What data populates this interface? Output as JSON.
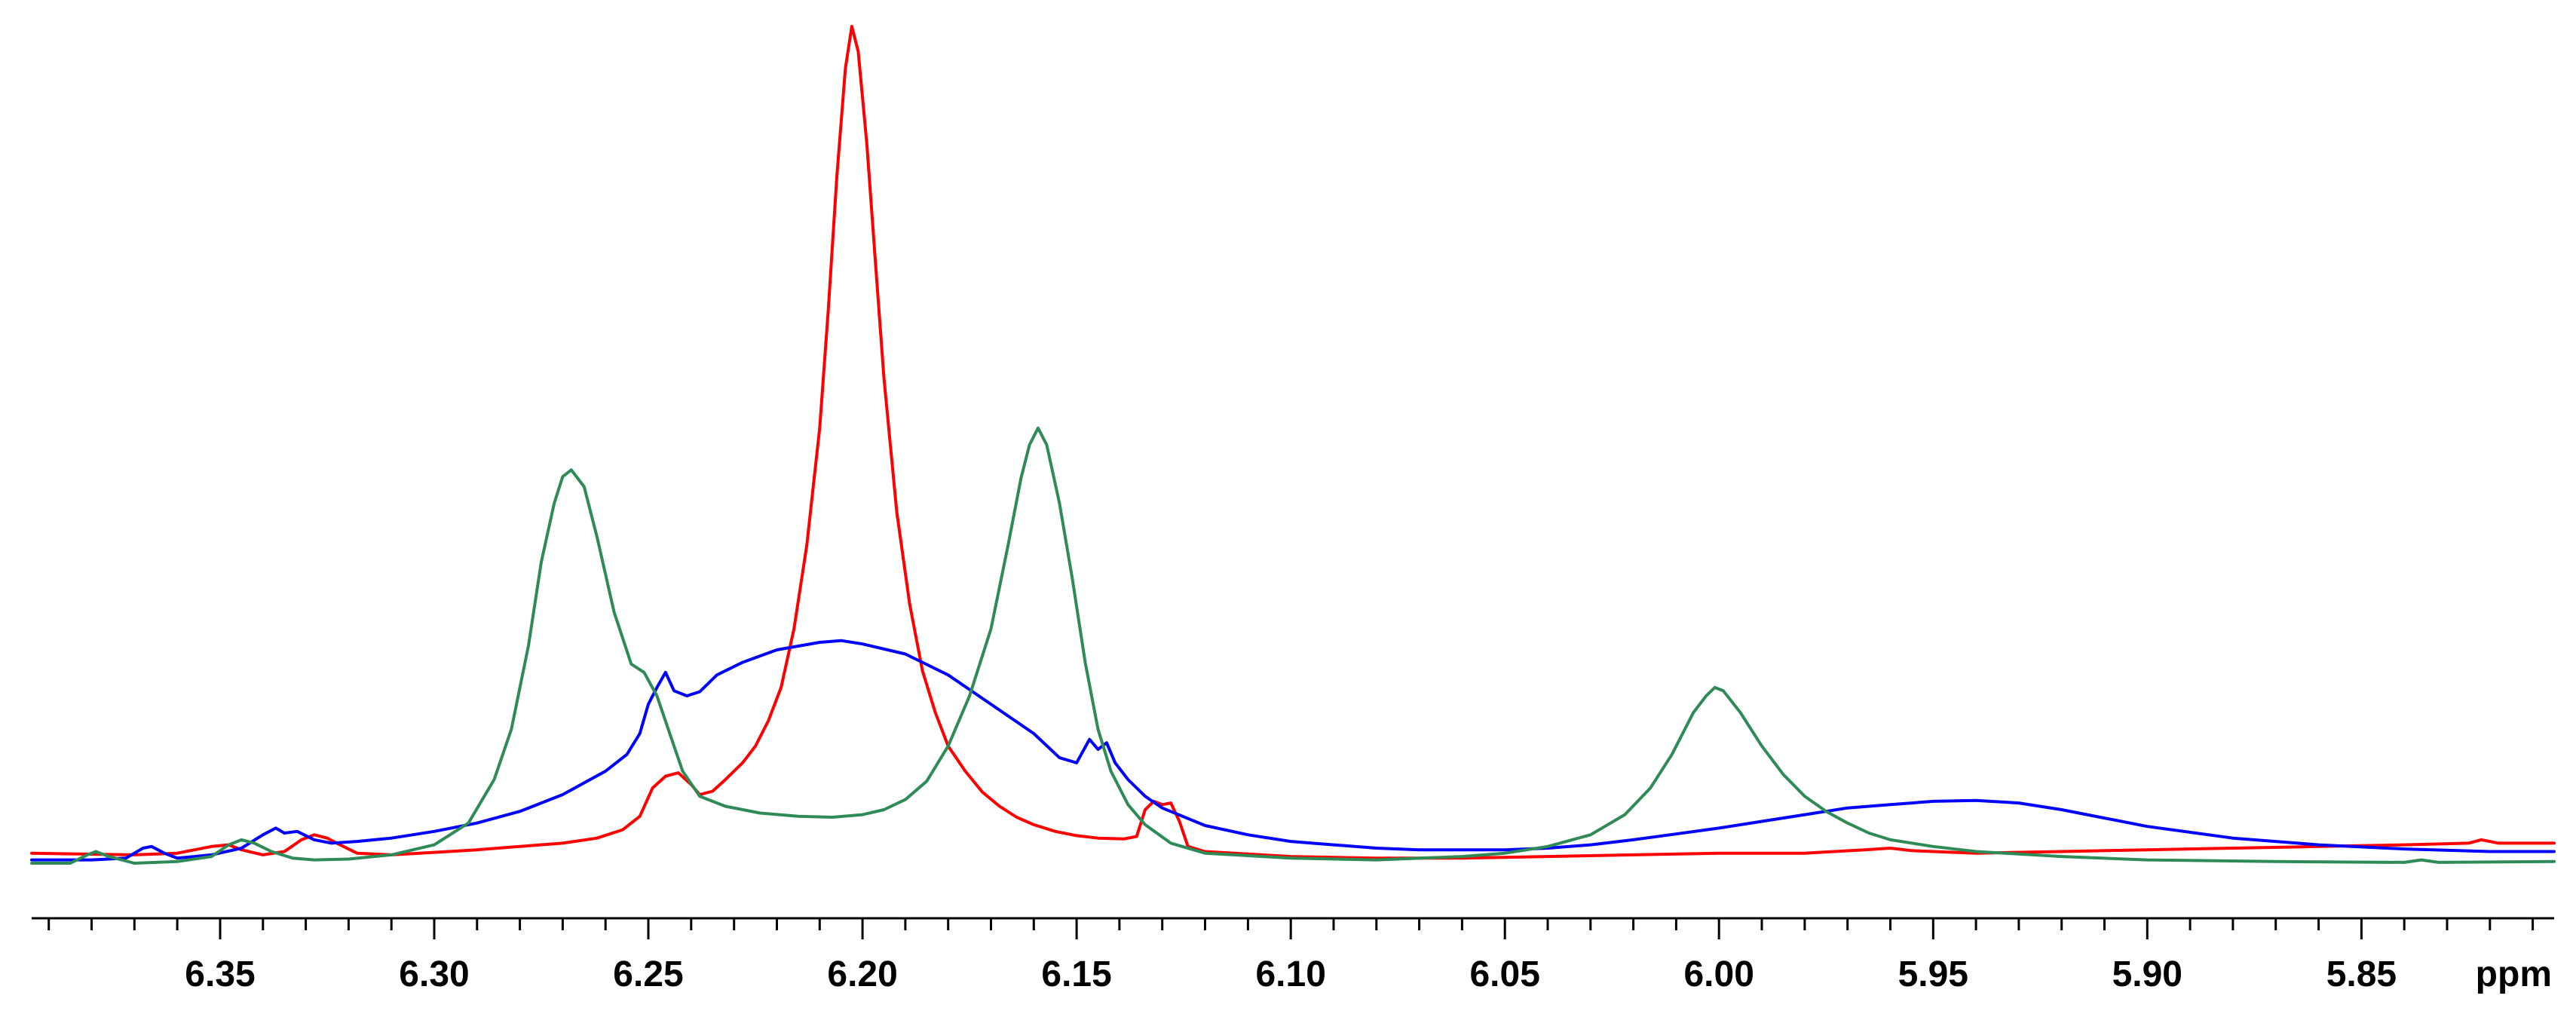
{
  "chart_data": {
    "type": "line",
    "title": "",
    "xlabel": "ppm",
    "ylabel": "",
    "x_reversed": true,
    "xlim": [
      6.394,
      5.805
    ],
    "ylim": [
      0,
      1
    ],
    "grid": false,
    "legend": "none",
    "x_ticks_major": [
      6.35,
      6.3,
      6.25,
      6.2,
      6.15,
      6.1,
      6.05,
      6.0,
      5.95,
      5.9,
      5.85
    ],
    "x_tick_labels": [
      "6.35",
      "6.30",
      "6.25",
      "6.20",
      "6.15",
      "6.10",
      "6.05",
      "6.00",
      "5.95",
      "5.90",
      "5.85"
    ],
    "series": [
      {
        "color": "#ff0000",
        "points": [
          [
            6.394,
            0.012
          ],
          [
            6.37,
            0.01
          ],
          [
            6.36,
            0.012
          ],
          [
            6.352,
            0.02
          ],
          [
            6.348,
            0.022
          ],
          [
            6.345,
            0.016
          ],
          [
            6.34,
            0.01
          ],
          [
            6.335,
            0.014
          ],
          [
            6.331,
            0.028
          ],
          [
            6.328,
            0.034
          ],
          [
            6.325,
            0.03
          ],
          [
            6.322,
            0.022
          ],
          [
            6.318,
            0.012
          ],
          [
            6.31,
            0.01
          ],
          [
            6.3,
            0.013
          ],
          [
            6.29,
            0.016
          ],
          [
            6.28,
            0.02
          ],
          [
            6.27,
            0.024
          ],
          [
            6.262,
            0.03
          ],
          [
            6.256,
            0.04
          ],
          [
            6.252,
            0.056
          ],
          [
            6.249,
            0.09
          ],
          [
            6.246,
            0.104
          ],
          [
            6.243,
            0.108
          ],
          [
            6.24,
            0.094
          ],
          [
            6.238,
            0.082
          ],
          [
            6.235,
            0.086
          ],
          [
            6.232,
            0.1
          ],
          [
            6.228,
            0.12
          ],
          [
            6.225,
            0.14
          ],
          [
            6.222,
            0.17
          ],
          [
            6.219,
            0.21
          ],
          [
            6.216,
            0.28
          ],
          [
            6.213,
            0.38
          ],
          [
            6.21,
            0.52
          ],
          [
            6.208,
            0.66
          ],
          [
            6.206,
            0.82
          ],
          [
            6.204,
            0.95
          ],
          [
            6.2025,
            1.0
          ],
          [
            6.201,
            0.97
          ],
          [
            6.199,
            0.86
          ],
          [
            6.197,
            0.72
          ],
          [
            6.195,
            0.58
          ],
          [
            6.192,
            0.42
          ],
          [
            6.189,
            0.31
          ],
          [
            6.186,
            0.23
          ],
          [
            6.183,
            0.18
          ],
          [
            6.18,
            0.14
          ],
          [
            6.176,
            0.11
          ],
          [
            6.172,
            0.085
          ],
          [
            6.168,
            0.068
          ],
          [
            6.164,
            0.055
          ],
          [
            6.16,
            0.046
          ],
          [
            6.155,
            0.038
          ],
          [
            6.15,
            0.033
          ],
          [
            6.145,
            0.03
          ],
          [
            6.139,
            0.029
          ],
          [
            6.136,
            0.032
          ],
          [
            6.134,
            0.064
          ],
          [
            6.132,
            0.074
          ],
          [
            6.13,
            0.07
          ],
          [
            6.128,
            0.072
          ],
          [
            6.126,
            0.05
          ],
          [
            6.124,
            0.02
          ],
          [
            6.12,
            0.014
          ],
          [
            6.1,
            0.008
          ],
          [
            6.08,
            0.006
          ],
          [
            6.06,
            0.006
          ],
          [
            6.04,
            0.008
          ],
          [
            6.02,
            0.01
          ],
          [
            6.0,
            0.012
          ],
          [
            5.98,
            0.012
          ],
          [
            5.966,
            0.016
          ],
          [
            5.96,
            0.018
          ],
          [
            5.955,
            0.015
          ],
          [
            5.94,
            0.012
          ],
          [
            5.92,
            0.014
          ],
          [
            5.9,
            0.016
          ],
          [
            5.88,
            0.018
          ],
          [
            5.86,
            0.02
          ],
          [
            5.84,
            0.022
          ],
          [
            5.825,
            0.024
          ],
          [
            5.822,
            0.028
          ],
          [
            5.818,
            0.024
          ],
          [
            5.805,
            0.024
          ]
        ]
      },
      {
        "color": "#0000ff",
        "points": [
          [
            6.394,
            0.004
          ],
          [
            6.38,
            0.004
          ],
          [
            6.372,
            0.006
          ],
          [
            6.368,
            0.018
          ],
          [
            6.366,
            0.02
          ],
          [
            6.363,
            0.012
          ],
          [
            6.36,
            0.006
          ],
          [
            6.352,
            0.01
          ],
          [
            6.345,
            0.018
          ],
          [
            6.34,
            0.034
          ],
          [
            6.337,
            0.042
          ],
          [
            6.335,
            0.036
          ],
          [
            6.332,
            0.038
          ],
          [
            6.328,
            0.028
          ],
          [
            6.324,
            0.024
          ],
          [
            6.318,
            0.026
          ],
          [
            6.31,
            0.03
          ],
          [
            6.3,
            0.038
          ],
          [
            6.29,
            0.048
          ],
          [
            6.28,
            0.062
          ],
          [
            6.27,
            0.082
          ],
          [
            6.26,
            0.11
          ],
          [
            6.255,
            0.13
          ],
          [
            6.252,
            0.155
          ],
          [
            6.25,
            0.19
          ],
          [
            6.248,
            0.21
          ],
          [
            6.246,
            0.228
          ],
          [
            6.244,
            0.206
          ],
          [
            6.241,
            0.2
          ],
          [
            6.238,
            0.205
          ],
          [
            6.234,
            0.225
          ],
          [
            6.228,
            0.24
          ],
          [
            6.22,
            0.255
          ],
          [
            6.21,
            0.264
          ],
          [
            6.205,
            0.266
          ],
          [
            6.2,
            0.262
          ],
          [
            6.19,
            0.25
          ],
          [
            6.18,
            0.225
          ],
          [
            6.17,
            0.19
          ],
          [
            6.16,
            0.155
          ],
          [
            6.154,
            0.126
          ],
          [
            6.15,
            0.12
          ],
          [
            6.147,
            0.148
          ],
          [
            6.145,
            0.136
          ],
          [
            6.143,
            0.144
          ],
          [
            6.141,
            0.12
          ],
          [
            6.138,
            0.1
          ],
          [
            6.134,
            0.08
          ],
          [
            6.13,
            0.066
          ],
          [
            6.12,
            0.045
          ],
          [
            6.11,
            0.034
          ],
          [
            6.1,
            0.026
          ],
          [
            6.09,
            0.022
          ],
          [
            6.08,
            0.018
          ],
          [
            6.07,
            0.016
          ],
          [
            6.06,
            0.016
          ],
          [
            6.05,
            0.016
          ],
          [
            6.04,
            0.018
          ],
          [
            6.03,
            0.022
          ],
          [
            6.02,
            0.028
          ],
          [
            6.01,
            0.035
          ],
          [
            6.0,
            0.042
          ],
          [
            5.99,
            0.05
          ],
          [
            5.98,
            0.058
          ],
          [
            5.97,
            0.066
          ],
          [
            5.96,
            0.07
          ],
          [
            5.95,
            0.074
          ],
          [
            5.94,
            0.075
          ],
          [
            5.93,
            0.072
          ],
          [
            5.92,
            0.064
          ],
          [
            5.91,
            0.054
          ],
          [
            5.9,
            0.044
          ],
          [
            5.88,
            0.03
          ],
          [
            5.86,
            0.022
          ],
          [
            5.84,
            0.017
          ],
          [
            5.82,
            0.014
          ],
          [
            5.805,
            0.014
          ]
        ]
      },
      {
        "color": "#2e8b57",
        "points": [
          [
            6.394,
            0.0
          ],
          [
            6.385,
            0.0
          ],
          [
            6.381,
            0.01
          ],
          [
            6.379,
            0.014
          ],
          [
            6.376,
            0.008
          ],
          [
            6.37,
            0.0
          ],
          [
            6.36,
            0.002
          ],
          [
            6.352,
            0.008
          ],
          [
            6.348,
            0.022
          ],
          [
            6.345,
            0.028
          ],
          [
            6.342,
            0.024
          ],
          [
            6.338,
            0.014
          ],
          [
            6.333,
            0.006
          ],
          [
            6.328,
            0.004
          ],
          [
            6.32,
            0.005
          ],
          [
            6.31,
            0.01
          ],
          [
            6.3,
            0.022
          ],
          [
            6.292,
            0.048
          ],
          [
            6.286,
            0.1
          ],
          [
            6.282,
            0.16
          ],
          [
            6.278,
            0.26
          ],
          [
            6.275,
            0.36
          ],
          [
            6.272,
            0.43
          ],
          [
            6.27,
            0.462
          ],
          [
            6.268,
            0.47
          ],
          [
            6.265,
            0.45
          ],
          [
            6.262,
            0.39
          ],
          [
            6.258,
            0.3
          ],
          [
            6.254,
            0.238
          ],
          [
            6.251,
            0.228
          ],
          [
            6.248,
            0.2
          ],
          [
            6.245,
            0.155
          ],
          [
            6.242,
            0.11
          ],
          [
            6.238,
            0.08
          ],
          [
            6.232,
            0.068
          ],
          [
            6.224,
            0.06
          ],
          [
            6.215,
            0.056
          ],
          [
            6.207,
            0.055
          ],
          [
            6.2,
            0.058
          ],
          [
            6.195,
            0.064
          ],
          [
            6.19,
            0.076
          ],
          [
            6.185,
            0.098
          ],
          [
            6.18,
            0.14
          ],
          [
            6.175,
            0.2
          ],
          [
            6.17,
            0.28
          ],
          [
            6.166,
            0.38
          ],
          [
            6.163,
            0.46
          ],
          [
            6.161,
            0.5
          ],
          [
            6.159,
            0.52
          ],
          [
            6.157,
            0.5
          ],
          [
            6.154,
            0.43
          ],
          [
            6.151,
            0.34
          ],
          [
            6.148,
            0.24
          ],
          [
            6.145,
            0.16
          ],
          [
            6.142,
            0.11
          ],
          [
            6.138,
            0.07
          ],
          [
            6.134,
            0.046
          ],
          [
            6.128,
            0.024
          ],
          [
            6.12,
            0.012
          ],
          [
            6.1,
            0.006
          ],
          [
            6.08,
            0.004
          ],
          [
            6.06,
            0.008
          ],
          [
            6.05,
            0.012
          ],
          [
            6.04,
            0.02
          ],
          [
            6.03,
            0.034
          ],
          [
            6.022,
            0.058
          ],
          [
            6.016,
            0.09
          ],
          [
            6.011,
            0.13
          ],
          [
            6.006,
            0.18
          ],
          [
            6.003,
            0.2
          ],
          [
            6.001,
            0.21
          ],
          [
            5.999,
            0.206
          ],
          [
            5.995,
            0.18
          ],
          [
            5.99,
            0.14
          ],
          [
            5.985,
            0.106
          ],
          [
            5.98,
            0.08
          ],
          [
            5.975,
            0.062
          ],
          [
            5.97,
            0.048
          ],
          [
            5.965,
            0.036
          ],
          [
            5.96,
            0.028
          ],
          [
            5.95,
            0.02
          ],
          [
            5.94,
            0.014
          ],
          [
            5.92,
            0.008
          ],
          [
            5.9,
            0.004
          ],
          [
            5.87,
            0.002
          ],
          [
            5.84,
            0.001
          ],
          [
            5.836,
            0.004
          ],
          [
            5.832,
            0.001
          ],
          [
            5.805,
            0.002
          ]
        ]
      }
    ]
  }
}
